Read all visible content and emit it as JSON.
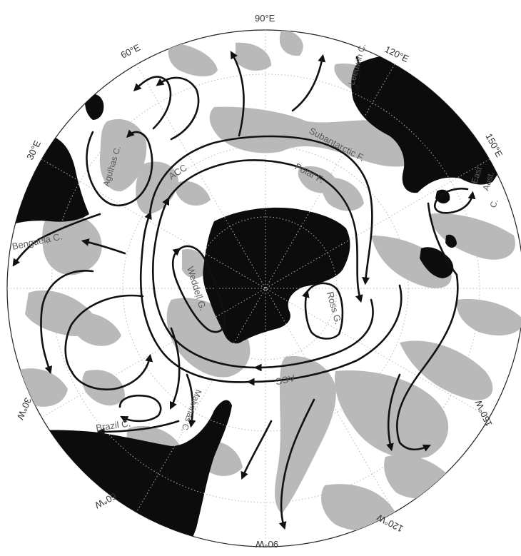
{
  "map": {
    "longitude_labels": {
      "e90": "90°E",
      "e60": "60°E",
      "e30": "30°E",
      "e120": "120°E",
      "e150": "150°E",
      "w30": "30°W",
      "w60": "60°W",
      "w90": "90°W",
      "w120": "120°W",
      "w150": "150°W"
    },
    "current_labels": {
      "leeuwin": "Leeuwin C.",
      "agulhas": "Agulhas C.",
      "subantarctic": "Subantarctic F.",
      "polar": "Polar F.",
      "acc_top": "ACC",
      "acc_bottom": "ACC",
      "benguela": "Benguela C.",
      "weddell": "Weddell G.",
      "ross": "Ross G.",
      "brazil": "Brazil C.",
      "malvinas": "Malvinas C.",
      "east_aust_1": "East",
      "east_aust_2": "Aust.",
      "east_aust_3": "C."
    },
    "colors": {
      "land": "#0c0c0c",
      "shallow_topography": "#b9b9b9",
      "ocean": "#ffffff",
      "currents": "#111111"
    }
  }
}
